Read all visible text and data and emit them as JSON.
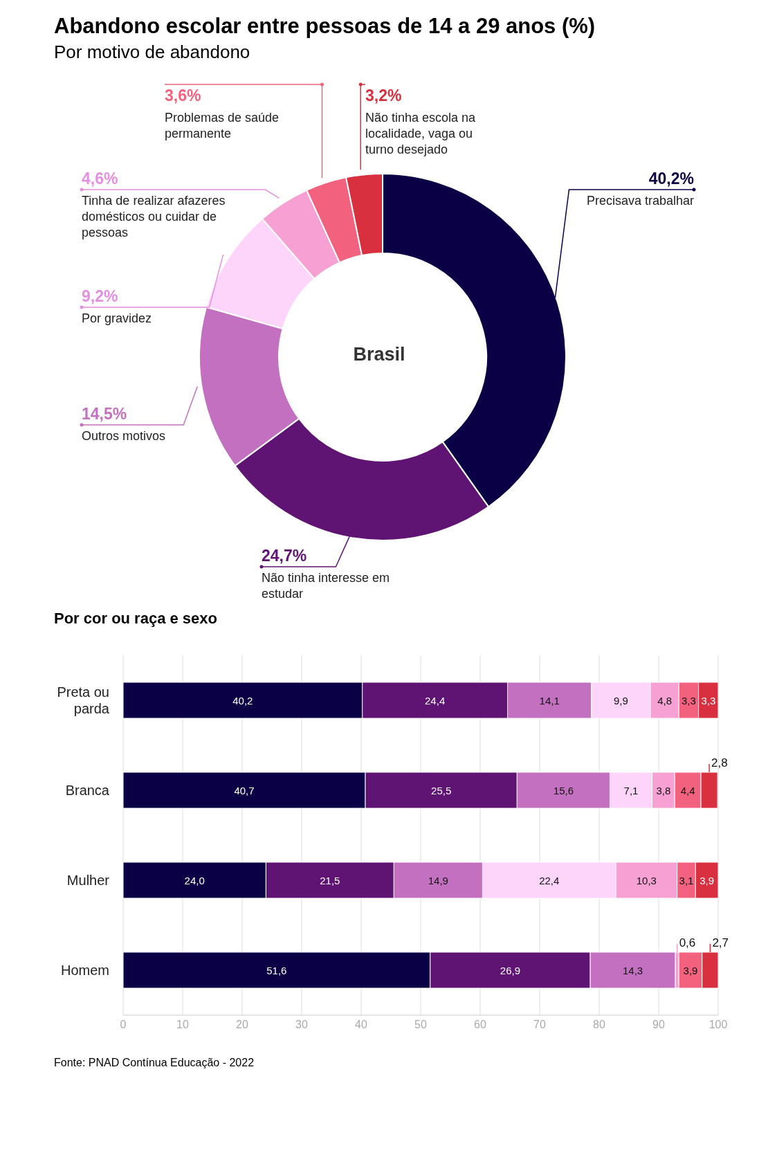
{
  "chart_data": [
    {
      "type": "donut",
      "title": "Abandono escolar entre pessoas de 14 a 29 anos (%)",
      "subtitle": "Por motivo de abandono",
      "categories": [
        "Precisava trabalhar",
        "Não tinha interesse em estudar",
        "Outros motivos",
        "Por gravidez",
        "Tinha de realizar afazeres domésticos ou cuidar de pessoas",
        "Problemas de saúde permanente",
        "Não tinha escola na localidade, vaga ou turno desejado"
      ],
      "values": [
        40.2,
        24.7,
        14.5,
        9.2,
        4.6,
        3.6,
        3.2
      ],
      "value_labels": [
        "40,2%",
        "24,7%",
        "14,5%",
        "9,2%",
        "4,6%",
        "3,6%",
        "3,2%"
      ],
      "colors": [
        "#0a0046",
        "#5f1473",
        "#c470c0",
        "#fdd5fb",
        "#f7a0d4",
        "#f2627f",
        "#d9303f"
      ],
      "annotations": [
        "Brasil"
      ]
    },
    {
      "type": "bar",
      "orientation": "horizontal",
      "stacked": true,
      "title": "Por cor ou raça e sexo",
      "categories": [
        "Preta ou parda",
        "Branca",
        "Mulher",
        "Homem"
      ],
      "series": [
        {
          "color": "#0a0046",
          "values": [
            40.2,
            40.7,
            24.0,
            51.6
          ],
          "value_labels": [
            "40,2",
            "40,7",
            "24,0",
            "51,6"
          ]
        },
        {
          "color": "#5f1473",
          "values": [
            24.4,
            25.5,
            21.5,
            26.9
          ],
          "value_labels": [
            "24,4",
            "25,5",
            "21,5",
            "26,9"
          ]
        },
        {
          "color": "#c470c0",
          "values": [
            14.1,
            15.6,
            14.9,
            14.3
          ],
          "value_labels": [
            "14,1",
            "15,6",
            "14,9",
            "14,3"
          ]
        },
        {
          "color": "#fdd5fb",
          "values": [
            9.9,
            7.1,
            22.4,
            null
          ],
          "value_labels": [
            "9,9",
            "7,1",
            "22,4",
            null
          ]
        },
        {
          "color": "#f7a0d4",
          "values": [
            4.8,
            3.8,
            10.3,
            0.6
          ],
          "value_labels": [
            "4,8",
            "3,8",
            "10,3",
            "0,6"
          ]
        },
        {
          "color": "#f2627f",
          "values": [
            3.3,
            4.4,
            3.1,
            3.9
          ],
          "value_labels": [
            "3,3",
            "4,4",
            "3,1",
            "3,9"
          ]
        },
        {
          "color": "#d9303f",
          "values": [
            3.3,
            2.8,
            3.9,
            2.7
          ],
          "value_labels": [
            "3,3",
            "2,8",
            "3,9",
            "2,7"
          ]
        }
      ],
      "xlim": [
        0,
        100
      ],
      "xticks": [
        0,
        10,
        20,
        30,
        40,
        50,
        60,
        70,
        80,
        90,
        100
      ],
      "grid": "x",
      "annotations": [
        "Fonte: PNAD Contínua Educação - 2022"
      ]
    }
  ]
}
